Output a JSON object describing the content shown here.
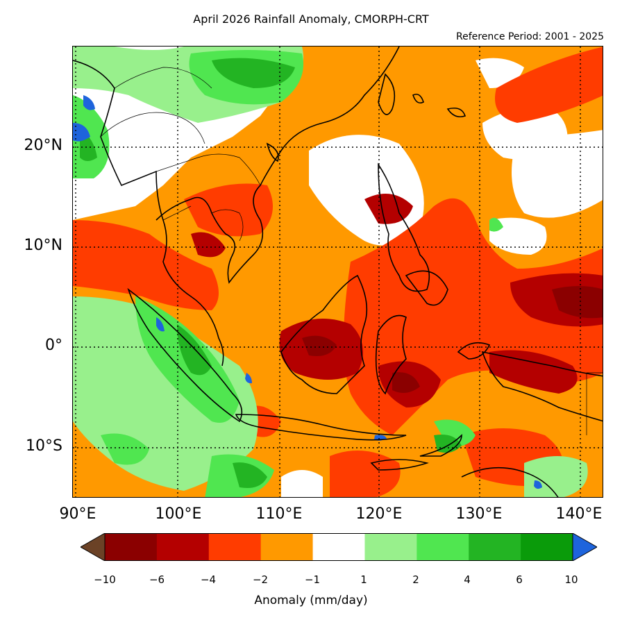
{
  "title": "April 2026 Rainfall Anomaly, CMORPH-CRT",
  "reference_period": "Reference Period: 2001 - 2025",
  "map": {
    "lon_range": [
      90,
      142
    ],
    "lat_range": [
      -15,
      30
    ],
    "lat_ticks": [
      {
        "value": 20,
        "label": "20°N"
      },
      {
        "value": 10,
        "label": "10°N"
      },
      {
        "value": 0,
        "label": "0°"
      },
      {
        "value": -10,
        "label": "10°S"
      }
    ],
    "lon_ticks": [
      {
        "value": 90,
        "label": "90°E"
      },
      {
        "value": 100,
        "label": "100°E"
      },
      {
        "value": 110,
        "label": "110°E"
      },
      {
        "value": 120,
        "label": "120°E"
      },
      {
        "value": 130,
        "label": "130°E"
      },
      {
        "value": 140,
        "label": "140°E"
      }
    ],
    "gridlines": "dotted"
  },
  "colorbar": {
    "label": "Anomaly (mm/day)",
    "ticks": [
      "−10",
      "−6",
      "−4",
      "−2",
      "−1",
      "1",
      "2",
      "4",
      "6",
      "10"
    ],
    "colors": [
      "#8b0000",
      "#b40000",
      "#ff3c00",
      "#ff9900",
      "#ffffff",
      "#98f08c",
      "#50e650",
      "#23b423",
      "#0a9b0a"
    ],
    "under_color": "#6b4226",
    "over_color": "#1e64dc"
  }
}
